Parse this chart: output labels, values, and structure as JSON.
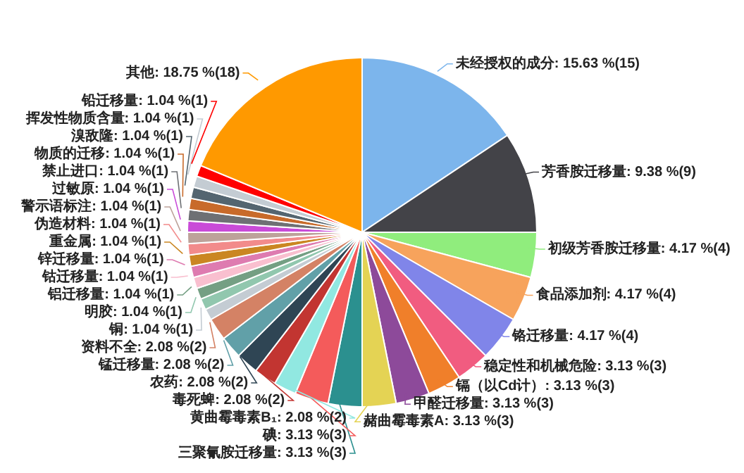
{
  "chart_data": {
    "type": "pie",
    "categories": [
      "未经授权的成分",
      "芳香胺迁移量",
      "初级芳香胺迁移量",
      "食品添加剂",
      "铬迁移量",
      "稳定性和机械危险",
      "镉（以Cd计）",
      "甲醛迁移量",
      "赭曲霉毒素A",
      "三聚氰胺迁移量",
      "碘",
      "黄曲霉毒素B₁",
      "毒死蜱",
      "农药",
      "锰迁移量",
      "资料不全",
      "铜",
      "明胶",
      "铝迁移量",
      "钴迁移量",
      "锌迁移量",
      "重金属",
      "伪造材料",
      "警示语标注",
      "过敏原",
      "禁止进口",
      "物质的迁移",
      "溴敌隆",
      "挥发性物质含量",
      "铅迁移量",
      "其他"
    ],
    "values": [
      15,
      9,
      4,
      4,
      4,
      3,
      3,
      3,
      3,
      3,
      3,
      2,
      2,
      2,
      2,
      2,
      1,
      1,
      1,
      1,
      1,
      1,
      1,
      1,
      1,
      1,
      1,
      1,
      1,
      1,
      18
    ],
    "value_labels": [
      "15.63 %(15)",
      "9.38 %(9)",
      "4.17 %(4)",
      "4.17 %(4)",
      "4.17 %(4)",
      "3.13 %(3)",
      "3.13 %(3)",
      "3.13 %(3)",
      "3.13 %(3)",
      "3.13 %(3)",
      "3.13 %(3)",
      "2.08 %(2)",
      "2.08 %(2)",
      "2.08 %(2)",
      "2.08 %(2)",
      "2.08 %(2)",
      "1.04 %(1)",
      "1.04 %(1)",
      "1.04 %(1)",
      "1.04 %(1)",
      "1.04 %(1)",
      "1.04 %(1)",
      "1.04 %(1)",
      "1.04 %(1)",
      "1.04 %(1)",
      "1.04 %(1)",
      "1.04 %(1)",
      "1.04 %(1)",
      "1.04 %(1)",
      "1.04 %(1)",
      "18.75 %(18)"
    ],
    "colors": [
      "#7cb5ec",
      "#434348",
      "#90ed7d",
      "#f7a35c",
      "#8085e9",
      "#f15c80",
      "#f07f2a",
      "#8d4a9a",
      "#e4d354",
      "#2b908f",
      "#f45b5b",
      "#91e8e1",
      "#c23531",
      "#2f4554",
      "#61a0a8",
      "#d48265",
      "#c4ccd3",
      "#91c7ae",
      "#749f83",
      "#f9bfcf",
      "#de7bb0",
      "#ca8622",
      "#f28b8b",
      "#bda29a",
      "#c94bd8",
      "#6e7074",
      "#c86a2a",
      "#546570",
      "#c4ccd3",
      "#ff0000",
      "#ff9900"
    ],
    "legend": false
  }
}
